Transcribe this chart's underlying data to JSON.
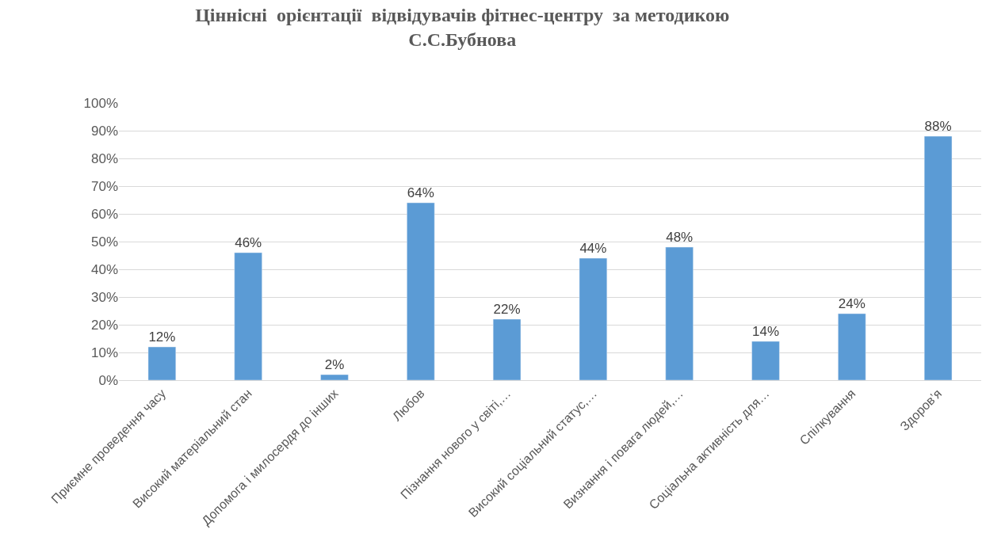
{
  "chart_data": {
    "type": "bar",
    "title": "Ціннісні  орієнтації  відвідувачів фітнес-центру  за методикою\nС.С.Бубнова",
    "categories": [
      "Приємне проведення часу",
      "Високий матеріальний стан",
      "Допомога і милосердя до інших",
      "Любов",
      "Пізнання нового у світі,…",
      "Високий соціальний статус,…",
      "Визнання і повага людей,…",
      "Соціальна активність для…",
      "Спілкування",
      "Здоров’я"
    ],
    "values": [
      12,
      46,
      2,
      64,
      22,
      44,
      48,
      14,
      24,
      88
    ],
    "value_labels": [
      "12%",
      "46%",
      "2%",
      "64%",
      "22%",
      "44%",
      "48%",
      "14%",
      "24%",
      "88%"
    ],
    "color": "#5b9bd5",
    "ylim": [
      0,
      100
    ],
    "yticks": [
      {
        "value": 0,
        "label": "0%"
      },
      {
        "value": 10,
        "label": "10%"
      },
      {
        "value": 20,
        "label": "20%"
      },
      {
        "value": 30,
        "label": "30%"
      },
      {
        "value": 40,
        "label": "40%"
      },
      {
        "value": 50,
        "label": "50%"
      },
      {
        "value": 60,
        "label": "60%"
      },
      {
        "value": 70,
        "label": "70%"
      },
      {
        "value": 80,
        "label": "80%"
      },
      {
        "value": 90,
        "label": "90%"
      },
      {
        "value": 100,
        "label": "100%"
      }
    ],
    "grid": "y"
  }
}
